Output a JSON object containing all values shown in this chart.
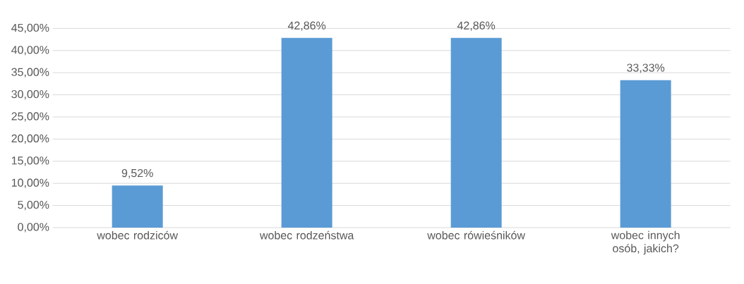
{
  "chart_data": {
    "type": "bar",
    "categories": [
      "wobec rodziców",
      "wobec rodzeństwa",
      "wobec rówieśników",
      "wobec innych osób, jakich?"
    ],
    "values": [
      9.52,
      42.86,
      42.86,
      33.33
    ],
    "value_labels": [
      "9,52%",
      "42,86%",
      "42,86%",
      "33,33%"
    ],
    "color": "#5b9bd5",
    "ylim": [
      0,
      45
    ],
    "yticks": [
      {
        "value": 0,
        "label": "0,00%"
      },
      {
        "value": 5,
        "label": "5,00%"
      },
      {
        "value": 10,
        "label": "10,00%"
      },
      {
        "value": 15,
        "label": "15,00%"
      },
      {
        "value": 20,
        "label": "20,00%"
      },
      {
        "value": 25,
        "label": "25,00%"
      },
      {
        "value": 30,
        "label": "30,00%"
      },
      {
        "value": 35,
        "label": "35,00%"
      },
      {
        "value": 40,
        "label": "40,00%"
      },
      {
        "value": 45,
        "label": "45,00%"
      }
    ],
    "grid": "y"
  }
}
